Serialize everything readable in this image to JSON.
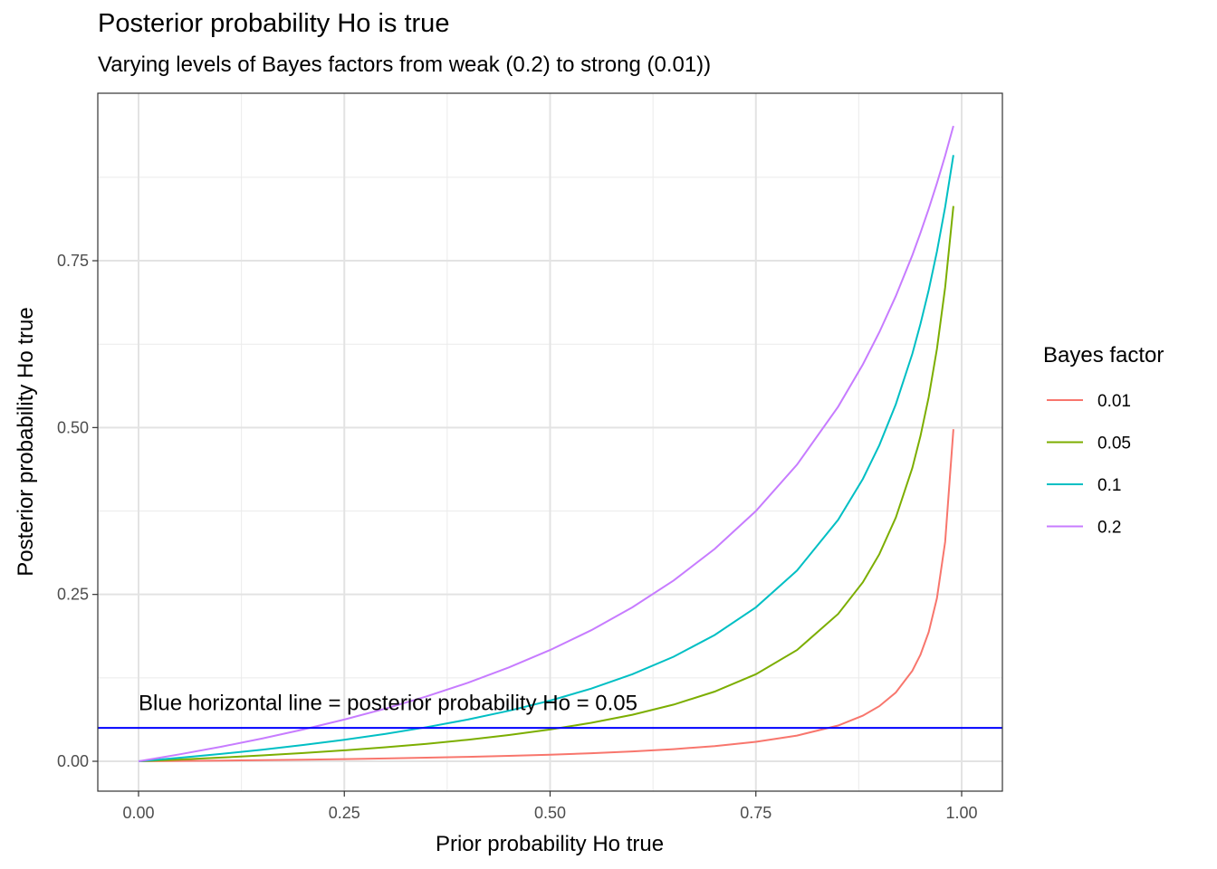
{
  "chart_data": {
    "type": "line",
    "title": "Posterior probability Ho is true",
    "subtitle": "Varying levels of Bayes factors from weak (0.2) to strong (0.01))",
    "xlabel": "Prior probability Ho true",
    "ylabel": "Posterior probability Ho true",
    "xlim": [
      -0.05,
      1.04
    ],
    "ylim": [
      -0.045,
      0.99
    ],
    "x_ticks": [
      0,
      0.25,
      0.5,
      0.75,
      1
    ],
    "x_tick_labels": [
      "0.00",
      "0.25",
      "0.50",
      "0.75",
      "1.00"
    ],
    "y_ticks": [
      0,
      0.25,
      0.5,
      0.75
    ],
    "y_tick_labels": [
      "0.00",
      "0.25",
      "0.50",
      "0.75"
    ],
    "grid": true,
    "legend": {
      "title": "Bayes factor",
      "placement": "right"
    },
    "x": [
      0,
      0.05,
      0.1,
      0.15,
      0.2,
      0.25,
      0.3,
      0.35,
      0.4,
      0.45,
      0.5,
      0.55,
      0.6,
      0.65,
      0.7,
      0.75,
      0.8,
      0.85,
      0.88,
      0.9,
      0.92,
      0.94,
      0.95,
      0.96,
      0.97,
      0.98,
      0.99
    ],
    "series": [
      {
        "name": "0.01",
        "color": "#F8766D",
        "values": [
          0,
          0.00053,
          0.00111,
          0.00176,
          0.00249,
          0.00332,
          0.00427,
          0.00536,
          0.00662,
          0.00811,
          0.0099,
          0.01207,
          0.01478,
          0.01823,
          0.0228,
          0.02913,
          0.03846,
          0.05363,
          0.06832,
          0.08257,
          0.10314,
          0.13545,
          0.15966,
          0.19355,
          0.24433,
          0.32886,
          0.49749
        ]
      },
      {
        "name": "0.05",
        "color": "#7CAE00",
        "values": [
          0,
          0.00262,
          0.00552,
          0.00875,
          0.01235,
          0.01639,
          0.02098,
          0.02622,
          0.03226,
          0.0393,
          0.04762,
          0.05759,
          0.06977,
          0.08497,
          0.10448,
          0.13043,
          0.16667,
          0.22078,
          0.26829,
          0.31034,
          0.36508,
          0.43925,
          0.48718,
          0.54545,
          0.61783,
          0.71014,
          0.83193
        ]
      },
      {
        "name": "0.1",
        "color": "#00BFC4",
        "values": [
          0,
          0.00524,
          0.01099,
          0.01734,
          0.02439,
          0.03226,
          0.0411,
          0.05109,
          0.0625,
          0.07563,
          0.09091,
          0.10891,
          0.13043,
          0.15663,
          0.18919,
          0.23077,
          0.28571,
          0.3617,
          0.42308,
          0.47368,
          0.53488,
          0.61039,
          0.65517,
          0.70588,
          0.76378,
          0.83051,
          0.90826
        ]
      },
      {
        "name": "0.2",
        "color": "#C77CFF",
        "values": [
          0,
          0.01042,
          0.02174,
          0.03409,
          0.04762,
          0.0625,
          0.07895,
          0.09722,
          0.11765,
          0.14063,
          0.16667,
          0.19643,
          0.23077,
          0.27083,
          0.31818,
          0.375,
          0.44444,
          0.53125,
          0.59459,
          0.64286,
          0.69697,
          0.75806,
          0.79167,
          0.82759,
          0.86607,
          0.90741,
          0.95192
        ]
      }
    ],
    "hline": {
      "y": 0.05,
      "color": "#0000FF"
    },
    "annotation": {
      "text": "Blue horizontal line = posterior probability Ho = 0.05",
      "x": 0,
      "y": 0.09
    }
  }
}
